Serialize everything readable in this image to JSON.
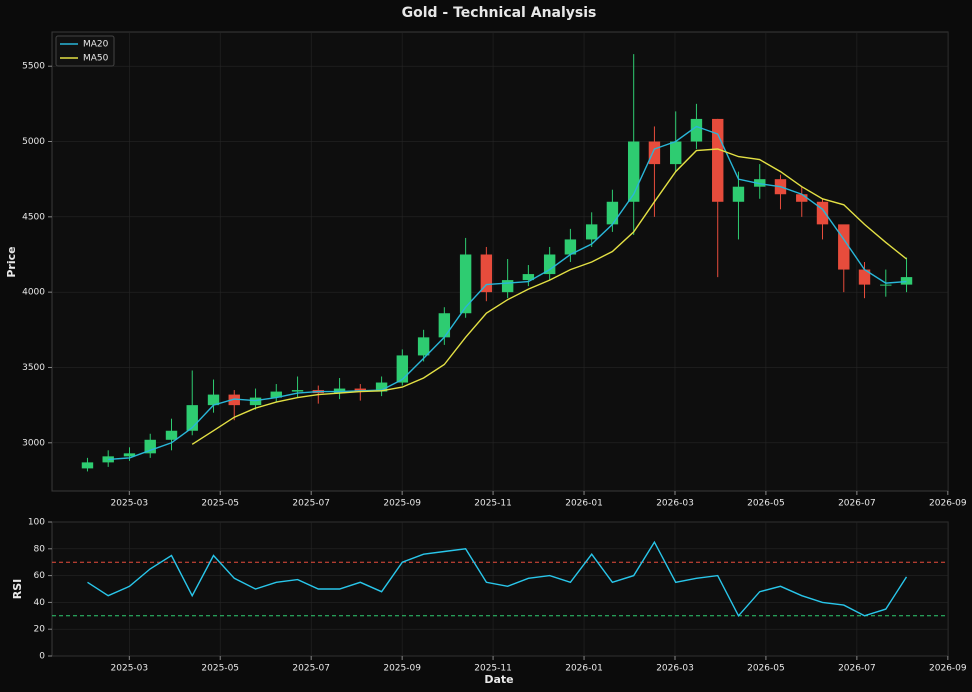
{
  "chart_data": [
    {
      "type": "candlestick",
      "title": "Gold - Technical Analysis",
      "ylabel": "Price",
      "x": [
        2025.09,
        2025.128,
        2025.167,
        2025.205,
        2025.244,
        2025.282,
        2025.321,
        2025.359,
        2025.398,
        2025.436,
        2025.475,
        2025.513,
        2025.552,
        2025.59,
        2025.629,
        2025.667,
        2025.706,
        2025.744,
        2025.783,
        2025.821,
        2025.86,
        2025.898,
        2025.937,
        2025.975,
        2026.014,
        2026.052,
        2026.091,
        2026.129,
        2026.168,
        2026.206,
        2026.245,
        2026.283,
        2026.322,
        2026.36,
        2026.399,
        2026.437,
        2026.476,
        2026.514,
        2026.553,
        2026.591
      ],
      "opens": [
        2830,
        2870,
        2910,
        2930,
        3020,
        3080,
        3250,
        3320,
        3250,
        3300,
        3340,
        3350,
        3330,
        3360,
        3340,
        3400,
        3580,
        3700,
        3860,
        4250,
        4000,
        4080,
        4120,
        4250,
        4350,
        4450,
        4600,
        5000,
        4850,
        5000,
        5150,
        4600,
        4700,
        4750,
        4650,
        4600,
        4450,
        4150,
        4050,
        4050
      ],
      "highs": [
        2900,
        2950,
        2970,
        3060,
        3160,
        3480,
        3420,
        3350,
        3360,
        3390,
        3440,
        3380,
        3430,
        3390,
        3440,
        3620,
        3750,
        3900,
        4360,
        4300,
        4220,
        4180,
        4300,
        4420,
        4530,
        4680,
        5580,
        5100,
        5200,
        5250,
        5150,
        4800,
        4850,
        4780,
        4700,
        4620,
        4400,
        4200,
        4150,
        4230
      ],
      "lows": [
        2810,
        2840,
        2880,
        2900,
        2950,
        3050,
        3200,
        3150,
        3220,
        3270,
        3300,
        3260,
        3290,
        3280,
        3310,
        3380,
        3540,
        3650,
        3830,
        3940,
        3960,
        4040,
        4080,
        4200,
        4300,
        4400,
        4380,
        4500,
        4800,
        4950,
        4100,
        4350,
        4620,
        4550,
        4500,
        4350,
        4000,
        3960,
        3970,
        4000
      ],
      "closes": [
        2870,
        2910,
        2930,
        3020,
        3080,
        3250,
        3320,
        3250,
        3300,
        3340,
        3350,
        3330,
        3360,
        3340,
        3400,
        3580,
        3700,
        3860,
        4250,
        4000,
        4080,
        4120,
        4250,
        4350,
        4450,
        4600,
        5000,
        4850,
        5000,
        5150,
        4600,
        4700,
        4750,
        4650,
        4600,
        4450,
        4150,
        4050,
        4050,
        4100
      ],
      "up_color": "#2ecc71",
      "down_color": "#e74c3c",
      "series": [
        {
          "name": "MA20",
          "color": "#29b6d8",
          "values": [
            null,
            2890,
            2900,
            2950,
            3000,
            3100,
            3250,
            3290,
            3280,
            3300,
            3330,
            3340,
            3340,
            3345,
            3350,
            3420,
            3560,
            3700,
            3900,
            4050,
            4060,
            4070,
            4150,
            4250,
            4320,
            4450,
            4650,
            4950,
            5000,
            5100,
            5050,
            4750,
            4720,
            4700,
            4650,
            4550,
            4350,
            4150,
            4060,
            4070
          ]
        },
        {
          "name": "MA50",
          "color": "#e3e044",
          "values": [
            null,
            null,
            null,
            null,
            null,
            2990,
            3080,
            3170,
            3230,
            3270,
            3300,
            3320,
            3330,
            3340,
            3345,
            3370,
            3430,
            3520,
            3700,
            3860,
            3950,
            4020,
            4080,
            4150,
            4200,
            4270,
            4400,
            4600,
            4800,
            4940,
            4950,
            4900,
            4880,
            4800,
            4700,
            4620,
            4580,
            4450,
            4330,
            4220
          ]
        }
      ],
      "xlim": [
        2025.025,
        2026.667
      ],
      "xticks": [
        {
          "value": 2025.1667,
          "label": "2025-03"
        },
        {
          "value": 2025.3333,
          "label": "2025-05"
        },
        {
          "value": 2025.5,
          "label": "2025-07"
        },
        {
          "value": 2025.6667,
          "label": "2025-09"
        },
        {
          "value": 2025.8333,
          "label": "2025-11"
        },
        {
          "value": 2026.0,
          "label": "2026-01"
        },
        {
          "value": 2026.1667,
          "label": "2026-03"
        },
        {
          "value": 2026.3333,
          "label": "2026-05"
        },
        {
          "value": 2026.5,
          "label": "2026-07"
        },
        {
          "value": 2026.6667,
          "label": "2026-09"
        }
      ],
      "ylim": [
        2680,
        5727
      ],
      "yticks": [
        3000,
        3500,
        4000,
        4500,
        5000,
        5500
      ],
      "grid": true,
      "legend": "upper left"
    },
    {
      "type": "line",
      "xlabel": "Date",
      "ylabel": "RSI",
      "x": [
        2025.09,
        2025.128,
        2025.167,
        2025.205,
        2025.244,
        2025.282,
        2025.321,
        2025.359,
        2025.398,
        2025.436,
        2025.475,
        2025.513,
        2025.552,
        2025.59,
        2025.629,
        2025.667,
        2025.706,
        2025.744,
        2025.783,
        2025.821,
        2025.86,
        2025.898,
        2025.937,
        2025.975,
        2026.014,
        2026.052,
        2026.091,
        2026.129,
        2026.168,
        2026.206,
        2026.245,
        2026.283,
        2026.322,
        2026.36,
        2026.399,
        2026.437,
        2026.476,
        2026.514,
        2026.553,
        2026.591
      ],
      "series": [
        {
          "color": "#29c6ea",
          "values": [
            55,
            45,
            52,
            65,
            75,
            45,
            75,
            58,
            50,
            55,
            57,
            50,
            50,
            55,
            48,
            70,
            76,
            78,
            80,
            55,
            52,
            58,
            60,
            55,
            76,
            55,
            60,
            85,
            55,
            58,
            60,
            30,
            48,
            52,
            45,
            40,
            38,
            30,
            35,
            59
          ]
        }
      ],
      "reference_lines": [
        {
          "value": 70,
          "color": "#e74c3c"
        },
        {
          "value": 30,
          "color": "#2ecc71"
        }
      ],
      "xlim": [
        2025.025,
        2026.667
      ],
      "xticks": [
        {
          "value": 2025.1667,
          "label": "2025-03"
        },
        {
          "value": 2025.3333,
          "label": "2025-05"
        },
        {
          "value": 2025.5,
          "label": "2025-07"
        },
        {
          "value": 2025.6667,
          "label": "2025-09"
        },
        {
          "value": 2025.8333,
          "label": "2025-11"
        },
        {
          "value": 2026.0,
          "label": "2026-01"
        },
        {
          "value": 2026.1667,
          "label": "2026-03"
        },
        {
          "value": 2026.3333,
          "label": "2026-05"
        },
        {
          "value": 2026.5,
          "label": "2026-07"
        },
        {
          "value": 2026.6667,
          "label": "2026-09"
        }
      ],
      "ylim": [
        0,
        100
      ],
      "yticks": [
        0,
        20,
        40,
        60,
        80,
        100
      ],
      "grid": true
    }
  ]
}
